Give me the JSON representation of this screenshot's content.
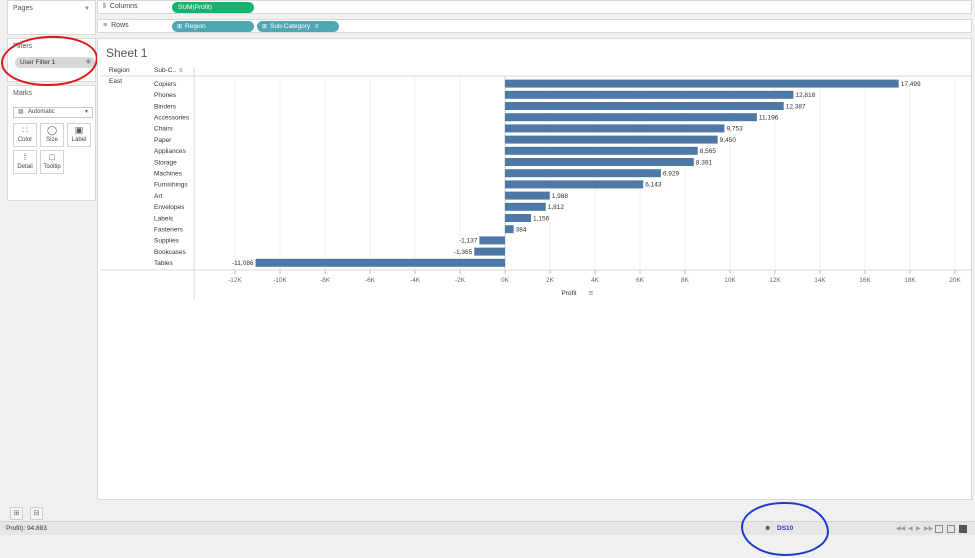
{
  "pages": {
    "title": "Pages"
  },
  "filters": {
    "title": "Filters",
    "pill_label": "User Filter 1"
  },
  "marks": {
    "title": "Marks",
    "mark_type": "Automatic",
    "buttons": [
      {
        "label": "Color",
        "icon": "color-dots-icon"
      },
      {
        "label": "Size",
        "icon": "size-icon"
      },
      {
        "label": "Label",
        "icon": "label-icon"
      },
      {
        "label": "Detail",
        "icon": "detail-icon"
      },
      {
        "label": "Tooltip",
        "icon": "tooltip-icon"
      }
    ]
  },
  "shelves": {
    "columns": {
      "label": "Columns",
      "pill": "SUM(Profit)"
    },
    "rows": {
      "label": "Rows",
      "pills": [
        "Region",
        "Sub-Category"
      ]
    }
  },
  "sheet": {
    "title": "Sheet 1",
    "region_header": "Region",
    "subcat_header": "Sub-C..",
    "region_value": "East"
  },
  "chart_data": {
    "type": "bar",
    "orientation": "horizontal",
    "categories": [
      "Copiers",
      "Phones",
      "Binders",
      "Accessories",
      "Chairs",
      "Paper",
      "Appliances",
      "Storage",
      "Machines",
      "Furnishings",
      "Art",
      "Envelopes",
      "Labels",
      "Fasteners",
      "Supplies",
      "Bookcases",
      "Tables"
    ],
    "values": [
      17499,
      12818,
      12387,
      11196,
      9753,
      9450,
      8565,
      8391,
      6929,
      6143,
      1988,
      1812,
      1156,
      384,
      -1137,
      -1365,
      -11086
    ],
    "value_labels": [
      "17,499",
      "12,818",
      "12,387",
      "11,196",
      "9,753",
      "9,450",
      "8,565",
      "8,391",
      "6,929",
      "6,143",
      "1,988",
      "1,812",
      "1,156",
      "384",
      "-1,137",
      "-1,365",
      "-11,086"
    ],
    "xlabel": "Profit",
    "xlim": [
      -13000,
      20000
    ],
    "ticks": [
      -12000,
      -10000,
      -8000,
      -6000,
      -4000,
      -2000,
      0,
      2000,
      4000,
      6000,
      8000,
      10000,
      12000,
      14000,
      16000,
      18000,
      20000
    ],
    "tick_labels": [
      "-12K",
      "-10K",
      "-8K",
      "-6K",
      "-4K",
      "-2K",
      "0K",
      "2K",
      "4K",
      "6K",
      "8K",
      "10K",
      "12K",
      "14K",
      "16K",
      "18K",
      "20K"
    ],
    "bar_color": "#4e79a7",
    "grid": true
  },
  "status": {
    "text": "Profit): 94.883",
    "datasource": "DS10"
  },
  "colors": {
    "annotation_red": "#e01818",
    "annotation_blue": "#1c3ccf",
    "columns_pill": "#15b371",
    "rows_pill": "#4ea7b3"
  }
}
